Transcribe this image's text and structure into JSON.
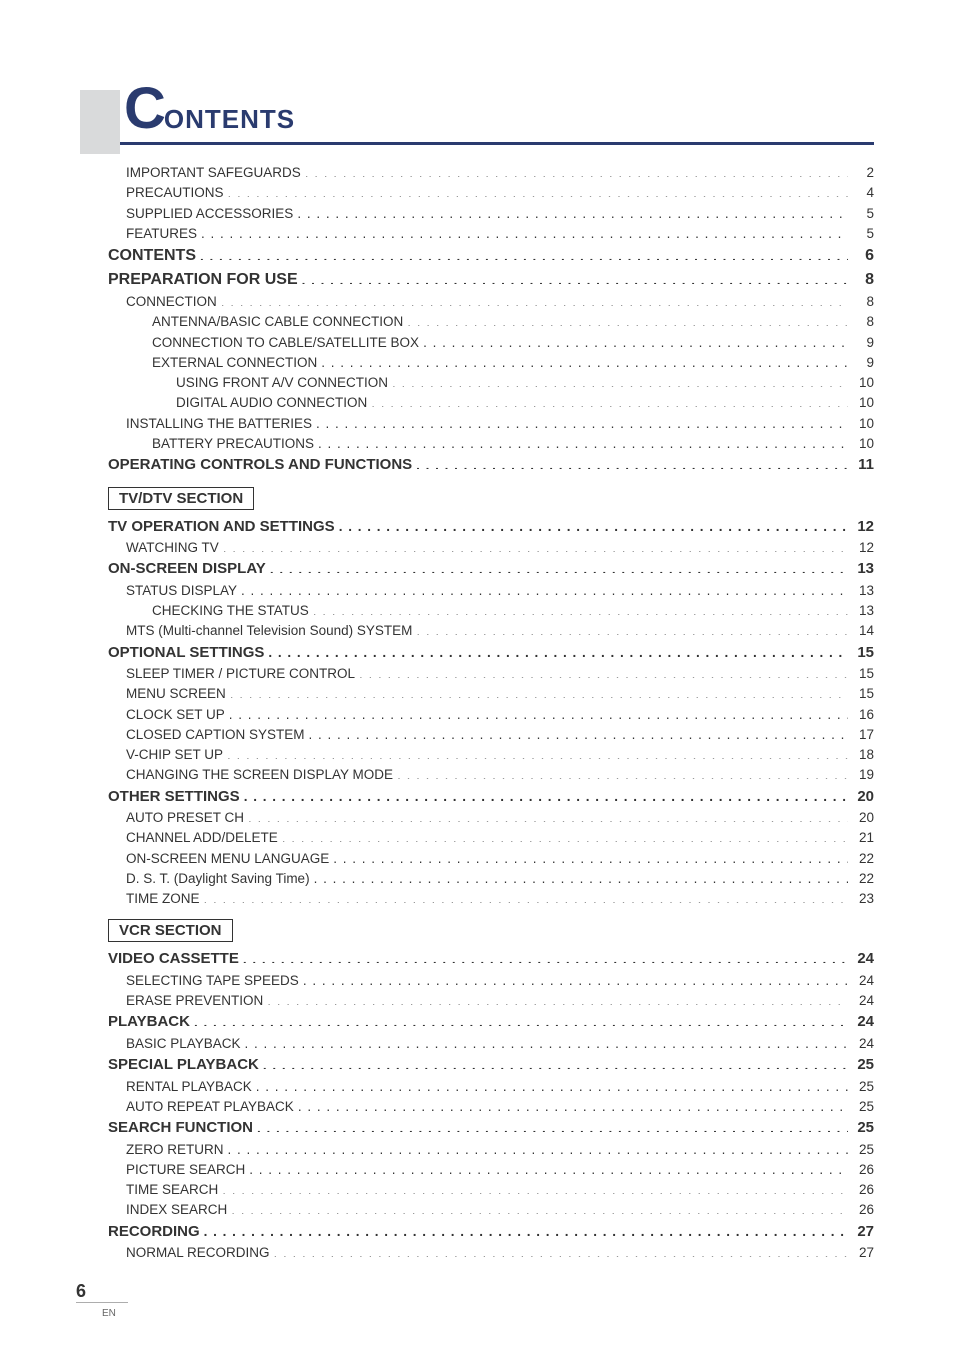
{
  "title": {
    "initial": "C",
    "rest": "ONTENTS"
  },
  "colors": {
    "accent": "#2a3b6f",
    "text": "#333333",
    "bar": "#d9dadb",
    "background": "#ffffff"
  },
  "toc": [
    {
      "l": 1,
      "t": "IMPORTANT SAFEGUARDS",
      "p": "2"
    },
    {
      "l": 1,
      "t": "PRECAUTIONS",
      "p": "4"
    },
    {
      "l": 1,
      "t": "SUPPLIED ACCESSORIES",
      "p": "5"
    },
    {
      "l": 1,
      "t": "FEATURES",
      "p": "5"
    },
    {
      "l": 0,
      "t": "CONTENTS",
      "p": "6",
      "b": true,
      "size": "big"
    },
    {
      "l": 0,
      "t": "PREPARATION FOR USE",
      "p": "8",
      "b": true,
      "size": "big"
    },
    {
      "l": 1,
      "t": "CONNECTION",
      "p": "8"
    },
    {
      "l": 2,
      "t": "ANTENNA/BASIC CABLE CONNECTION",
      "p": "8"
    },
    {
      "l": 2,
      "t": "CONNECTION TO CABLE/SATELLITE BOX",
      "p": "9"
    },
    {
      "l": 2,
      "t": "EXTERNAL CONNECTION",
      "p": "9"
    },
    {
      "l": 3,
      "t": "USING FRONT A/V CONNECTION",
      "p": "10"
    },
    {
      "l": 3,
      "t": "DIGITAL AUDIO CONNECTION",
      "p": "10"
    },
    {
      "l": 1,
      "t": "INSTALLING THE BATTERIES",
      "p": "10"
    },
    {
      "l": 2,
      "t": "BATTERY PRECAUTIONS",
      "p": "10"
    },
    {
      "l": 0,
      "t": "OPERATING CONTROLS AND FUNCTIONS",
      "p": "11",
      "b": true,
      "size": "mid"
    }
  ],
  "section_tv": "TV/DTV SECTION",
  "toc_tv": [
    {
      "l": 0,
      "t": "TV OPERATION AND SETTINGS",
      "p": "12",
      "b": true,
      "size": "mid"
    },
    {
      "l": 1,
      "t": "WATCHING TV",
      "p": "12"
    },
    {
      "l": 0,
      "t": "ON-SCREEN DISPLAY",
      "p": "13",
      "b": true,
      "size": "mid"
    },
    {
      "l": 1,
      "t": "STATUS DISPLAY",
      "p": "13"
    },
    {
      "l": 2,
      "t": "CHECKING THE STATUS",
      "p": "13"
    },
    {
      "l": 1,
      "t": "MTS (Multi-channel Television Sound) SYSTEM",
      "p": "14"
    },
    {
      "l": 0,
      "t": "OPTIONAL SETTINGS",
      "p": "15",
      "b": true,
      "size": "mid"
    },
    {
      "l": 1,
      "t": "SLEEP TIMER / PICTURE CONTROL",
      "p": "15"
    },
    {
      "l": 1,
      "t": "MENU SCREEN",
      "p": "15"
    },
    {
      "l": 1,
      "t": "CLOCK SET UP",
      "p": "16"
    },
    {
      "l": 1,
      "t": "CLOSED CAPTION SYSTEM",
      "p": "17"
    },
    {
      "l": 1,
      "t": "V-CHIP SET UP",
      "p": "18"
    },
    {
      "l": 1,
      "t": "CHANGING THE SCREEN DISPLAY MODE",
      "p": "19"
    },
    {
      "l": 0,
      "t": "OTHER SETTINGS",
      "p": "20",
      "b": true,
      "size": "mid"
    },
    {
      "l": 1,
      "t": "AUTO PRESET CH",
      "p": "20"
    },
    {
      "l": 1,
      "t": "CHANNEL ADD/DELETE",
      "p": "21"
    },
    {
      "l": 1,
      "t": "ON-SCREEN MENU LANGUAGE",
      "p": "22"
    },
    {
      "l": 1,
      "t": "D. S. T. (Daylight Saving Time)",
      "p": "22"
    },
    {
      "l": 1,
      "t": "TIME ZONE",
      "p": "23"
    }
  ],
  "section_vcr": "VCR SECTION",
  "toc_vcr": [
    {
      "l": 0,
      "t": "VIDEO CASSETTE",
      "p": "24",
      "b": true,
      "size": "mid"
    },
    {
      "l": 1,
      "t": "SELECTING TAPE SPEEDS",
      "p": "24"
    },
    {
      "l": 1,
      "t": "ERASE PREVENTION",
      "p": "24"
    },
    {
      "l": 0,
      "t": "PLAYBACK",
      "p": "24",
      "b": true,
      "size": "mid"
    },
    {
      "l": 1,
      "t": "BASIC PLAYBACK",
      "p": "24"
    },
    {
      "l": 0,
      "t": "SPECIAL PLAYBACK",
      "p": "25",
      "b": true,
      "size": "mid"
    },
    {
      "l": 1,
      "t": "RENTAL PLAYBACK",
      "p": "25"
    },
    {
      "l": 1,
      "t": "AUTO REPEAT PLAYBACK",
      "p": "25"
    },
    {
      "l": 0,
      "t": "SEARCH FUNCTION",
      "p": "25",
      "b": true,
      "size": "mid"
    },
    {
      "l": 1,
      "t": "ZERO RETURN",
      "p": "25"
    },
    {
      "l": 1,
      "t": "PICTURE SEARCH",
      "p": "26"
    },
    {
      "l": 1,
      "t": "TIME SEARCH",
      "p": "26"
    },
    {
      "l": 1,
      "t": "INDEX SEARCH",
      "p": "26"
    },
    {
      "l": 0,
      "t": "RECORDING",
      "p": "27",
      "b": true,
      "size": "mid"
    },
    {
      "l": 1,
      "t": "NORMAL RECORDING",
      "p": "27"
    }
  ],
  "footer": {
    "page_num": "6",
    "lang": "EN"
  }
}
